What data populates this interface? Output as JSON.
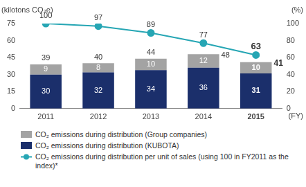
{
  "chart_data": {
    "type": "bar",
    "stacked": true,
    "categories": [
      "2011",
      "2012",
      "2013",
      "2014",
      "2015"
    ],
    "x_label": "(FY)",
    "y_label": "(kilotons CO₂e)",
    "y2_label": "(%)",
    "ylim": [
      0,
      75
    ],
    "yticks": [
      0,
      15,
      30,
      45,
      60,
      75
    ],
    "y2lim": [
      0,
      100
    ],
    "y2ticks": [
      0,
      20,
      40,
      60,
      80,
      100
    ],
    "grid": false,
    "legend": "bottom",
    "data_labels": true,
    "series": [
      {
        "name": "CO₂ emissions during distribution (KUBOTA)",
        "color": "#1b2f6b",
        "values": [
          30,
          32,
          34,
          36,
          31
        ]
      },
      {
        "name": "CO₂ emissions during distribution (Group companies)",
        "color": "#a3a3a3",
        "values": [
          9,
          8,
          10,
          12,
          10
        ]
      },
      {
        "name": "CO₂ emissions during distribution per unit of sales (using 100 in FY2011 as the index)*",
        "type": "line",
        "marker": "circle",
        "color": "#26a6b4",
        "axis": "y2",
        "values": [
          100,
          97,
          89,
          77,
          63
        ]
      }
    ],
    "totals": [
      39,
      40,
      44,
      48,
      41
    ]
  }
}
